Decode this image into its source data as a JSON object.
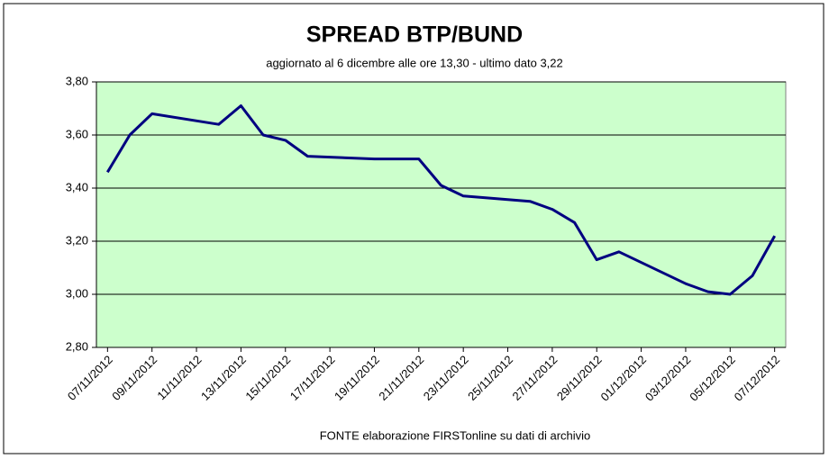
{
  "chart_data": {
    "type": "line",
    "title": "SPREAD  BTP/BUND",
    "subtitle": "aggiornato al 6 dicembre alle ore 13,30 - ultimo dato 3,22",
    "source": "FONTE elaborazione FIRSTonline su dati di archivio",
    "xlim": [
      "07/11/2012",
      "07/12/2012"
    ],
    "xticks": [
      "07/11/2012",
      "09/11/2012",
      "11/11/2012",
      "13/11/2012",
      "15/11/2012",
      "17/11/2012",
      "19/11/2012",
      "21/11/2012",
      "23/11/2012",
      "25/11/2012",
      "27/11/2012",
      "29/11/2012",
      "01/12/2012",
      "03/12/2012",
      "05/12/2012",
      "07/12/2012"
    ],
    "x": [
      "07/11/2012",
      "08/11/2012",
      "09/11/2012",
      "12/11/2012",
      "13/11/2012",
      "14/11/2012",
      "15/11/2012",
      "16/11/2012",
      "19/11/2012",
      "20/11/2012",
      "21/11/2012",
      "22/11/2012",
      "23/11/2012",
      "26/11/2012",
      "27/11/2012",
      "28/11/2012",
      "29/11/2012",
      "30/11/2012",
      "03/12/2012",
      "04/12/2012",
      "05/12/2012",
      "06/12/2012",
      "07/12/2012"
    ],
    "series": [
      {
        "name": "Spread",
        "color": "#000080",
        "values": [
          3.46,
          3.6,
          3.68,
          3.64,
          3.71,
          3.6,
          3.58,
          3.52,
          3.51,
          3.51,
          3.51,
          3.41,
          3.37,
          3.35,
          3.32,
          3.27,
          3.13,
          3.16,
          3.04,
          3.01,
          3.0,
          3.07,
          3.22
        ]
      }
    ],
    "ylim": [
      2.8,
      3.8
    ],
    "yticks": [
      {
        "value": 2.8,
        "label": "2,80"
      },
      {
        "value": 3.0,
        "label": "3,00"
      },
      {
        "value": 3.2,
        "label": "3,20"
      },
      {
        "value": 3.4,
        "label": "3,40"
      },
      {
        "value": 3.6,
        "label": "3,60"
      },
      {
        "value": 3.8,
        "label": "3,80"
      }
    ],
    "grid": true,
    "plot_background": "#ccffcc"
  }
}
